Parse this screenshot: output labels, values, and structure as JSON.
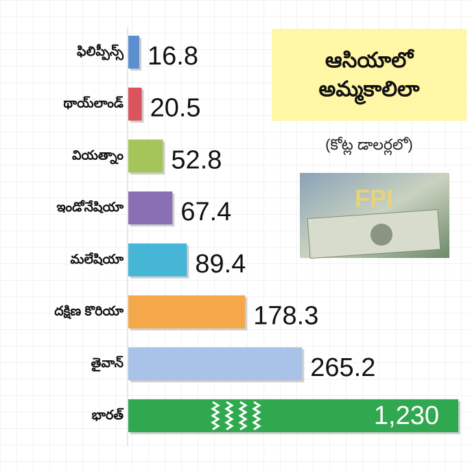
{
  "chart_data": {
    "type": "bar",
    "title": "ఆసియాలో అమ్మకాలిలా",
    "subtitle": "(కోట్ల డాలర్లలో)",
    "image_label": "FPI",
    "categories": [
      "ఫిలిప్పీన్స్",
      "థాయ్‌లాండ్",
      "వియత్నాం",
      "ఇండోనేషియా",
      "మలేషియా",
      "దక్షిణ కొరియా",
      "తైవాన్",
      "భారత్"
    ],
    "values": [
      16.8,
      20.5,
      52.8,
      67.4,
      89.4,
      178.3,
      265.2,
      1230
    ],
    "value_labels": [
      "16.8",
      "20.5",
      "52.8",
      "67.4",
      "89.4",
      "178.3",
      "265.2",
      "1,230"
    ],
    "colors": [
      "#5b8fd0",
      "#d9545c",
      "#a5c45a",
      "#8b6fb5",
      "#46b6d6",
      "#f5a84a",
      "#a9c2e8",
      "#2fa84f"
    ]
  }
}
